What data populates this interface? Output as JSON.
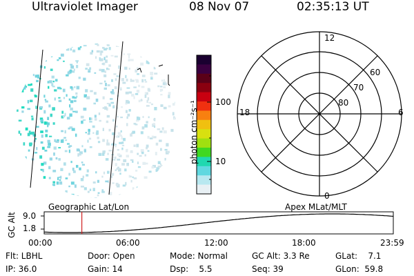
{
  "header": {
    "instrument": "Ultraviolet Imager",
    "date": "08 Nov 07",
    "time": "02:35:13 UT"
  },
  "colorbar": {
    "unit_label": "photon cm⁻²s⁻¹",
    "ticks": [
      {
        "label": "100",
        "value": 100
      },
      {
        "label": "10",
        "value": 10
      }
    ],
    "colors": [
      "#1a0030",
      "#3a0040",
      "#5a0018",
      "#8a0010",
      "#c80010",
      "#f03010",
      "#f88010",
      "#f0c010",
      "#d8e010",
      "#a0e010",
      "#40d820",
      "#20d8b0",
      "#60d8e0",
      "#b8e8f0",
      "#e8f0f4"
    ]
  },
  "polar_plot": {
    "mlt_labels": [
      "12",
      "18",
      "6",
      "0"
    ],
    "lat_labels": [
      "60",
      "70",
      "80"
    ]
  },
  "altitude_panel": {
    "y_label": "GC Alt",
    "y_ticks": [
      "9.0",
      "1.8"
    ],
    "left_title": "Geographic Lat/Lon",
    "right_title": "Apex  MLat/MLT",
    "x_ticks": [
      "00:00",
      "06:00",
      "12:00",
      "18:00",
      "23:59"
    ],
    "marker_time_hours": 2.59
  },
  "status": {
    "flt": "Flt: LBHL",
    "ip": "IP: 36.0",
    "door": "Door: Open",
    "gain": "Gain: 14",
    "mode": "Mode: Normal",
    "dsp": "Dsp:    5.5",
    "gc_alt": "GC Alt: 3.3 Re",
    "seq": "Seq: 39",
    "glat": "GLat:    7.1",
    "glon": "GLon:  59.8"
  }
}
